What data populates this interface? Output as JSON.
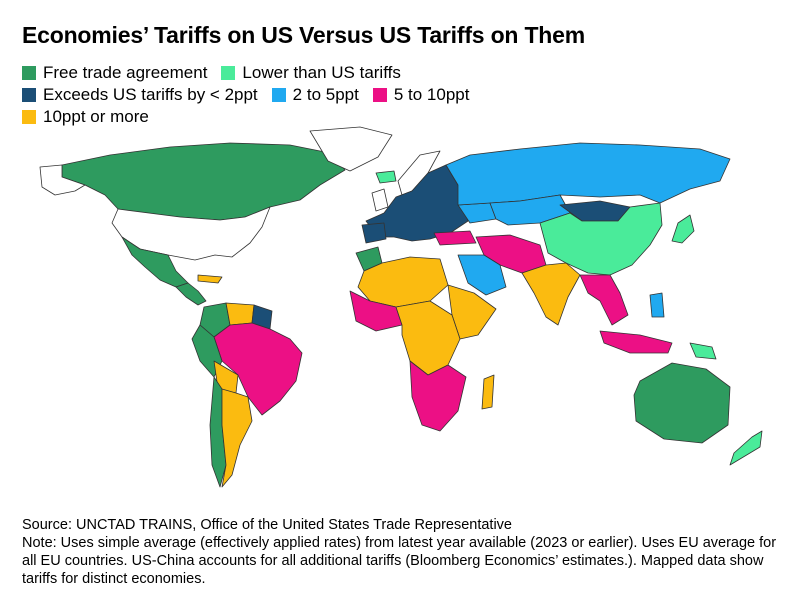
{
  "title": "Economies’ Tariffs on US Versus US Tariffs on Them",
  "legend": [
    {
      "label": "Free trade agreement",
      "color": "#2e9b5f"
    },
    {
      "label": "Lower than US tariffs",
      "color": "#4aeb9a"
    },
    {
      "label": "Exceeds US tariffs by < 2ppt",
      "color": "#1b4e76"
    },
    {
      "label": "2 to 5ppt",
      "color": "#20a9f0"
    },
    {
      "label": "5 to 10ppt",
      "color": "#ec1085"
    },
    {
      "label": "10ppt or more",
      "color": "#fbbb10"
    }
  ],
  "no_data_color": "#ffffff",
  "border_color": "#333333",
  "source": "Source: UNCTAD TRAINS, Office of the United States Trade Representative",
  "note": "Note: Uses simple average (effectively applied rates) from latest year available (2023 or earlier). Uses EU average for all EU countries. US-China accounts for all additional tariffs (Bloomberg Economics’ estimates.). Mapped data show tariffs for distinct economies."
}
